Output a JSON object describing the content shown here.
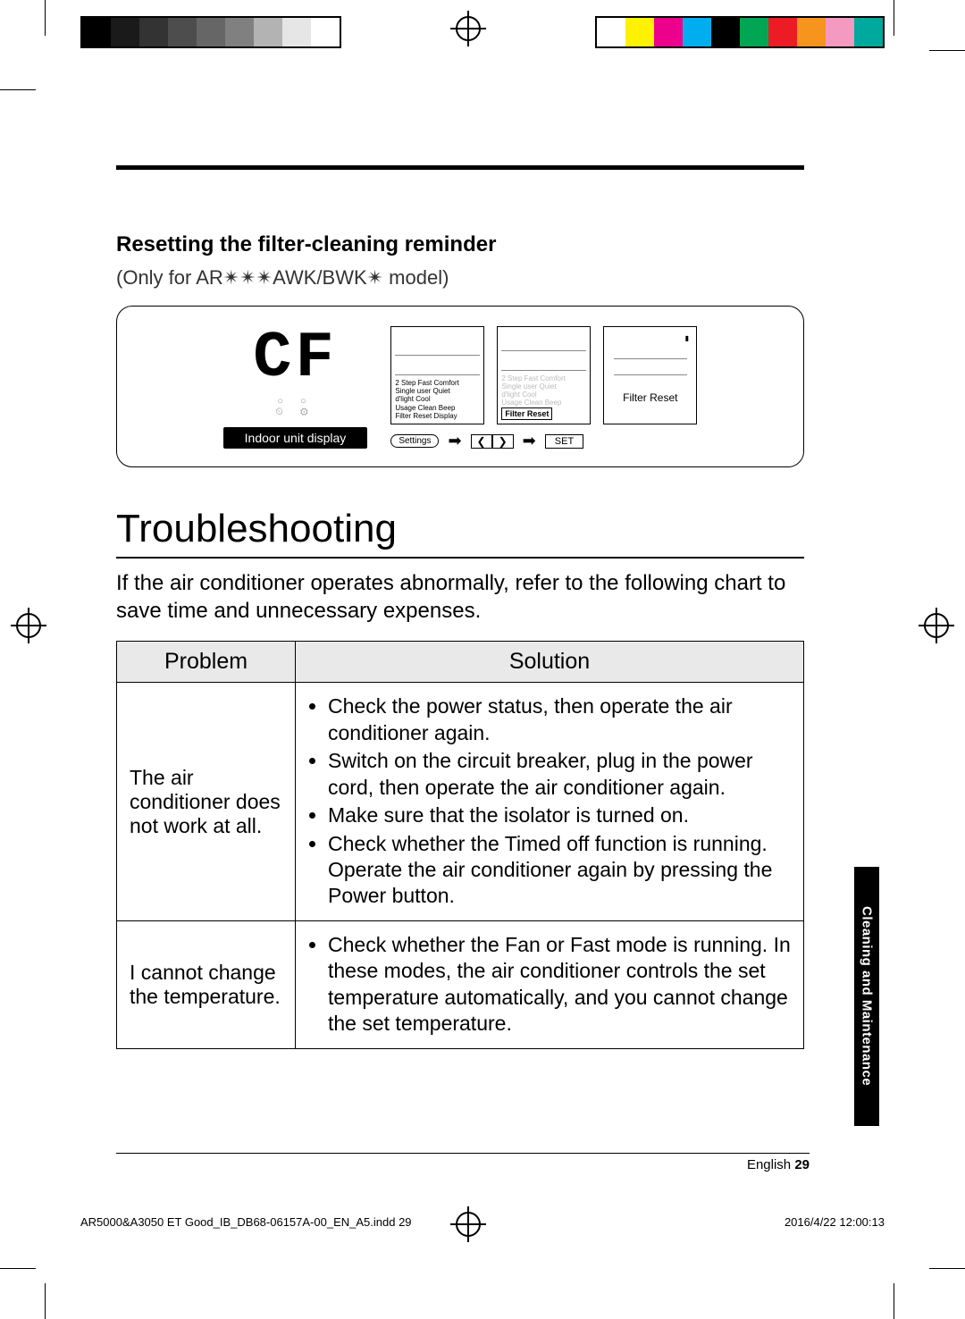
{
  "swatches_left": [
    "#000000",
    "#1a1a1a",
    "#333333",
    "#4d4d4d",
    "#666666",
    "#808080",
    "#b3b3b3",
    "#e6e6e6",
    "#ffffff"
  ],
  "swatches_right": [
    "#ffffff",
    "#fff200",
    "#ec008c",
    "#00aeef",
    "#000000",
    "#00a651",
    "#ed1c24",
    "#f7941d",
    "#f49ac1",
    "#00a99d"
  ],
  "section": {
    "subheading": "Resetting the filter-cleaning reminder",
    "model_note": "(Only for AR✴✴✴AWK/BWK✴ model)"
  },
  "diagram": {
    "seven_seg": "CF",
    "indoor_label": "Indoor unit display",
    "panel_lines": [
      "2 Step  Fast  Comfort",
      "Single user  Quiet",
      "d'light Cool",
      "Usage   Clean   Beep",
      "Filter Reset    Display"
    ],
    "highlight_label": "Filter Reset",
    "big_label": "Filter Reset",
    "settings_label": "Settings",
    "nav_left": "❮",
    "nav_right": "❯",
    "set_label": "SET",
    "arrow_glyph": "➡"
  },
  "troubleshooting": {
    "heading": "Troubleshooting",
    "intro": "If the air conditioner operates abnormally, refer to the following chart to save time and unnecessary expenses.",
    "columns": [
      "Problem",
      "Solution"
    ],
    "rows": [
      {
        "problem": "The air conditioner does not work at all.",
        "solutions": [
          "Check the power status, then operate the air conditioner again.",
          "Switch on the circuit breaker, plug in the power cord, then operate the air conditioner again.",
          "Make sure that the isolator is turned on.",
          "Check whether the Timed off function is running. Operate the air conditioner again by pressing the Power button."
        ]
      },
      {
        "problem": "I cannot change the temperature.",
        "solutions": [
          "Check whether the Fan or Fast mode is running. In these modes, the air conditioner controls the set temperature automatically, and you cannot change the set temperature."
        ]
      }
    ]
  },
  "side_tab": "Cleaning and Maintenance",
  "footer": {
    "lang": "English",
    "page": "29"
  },
  "print_footer": {
    "left": "AR5000&A3050 ET Good_IB_DB68-06157A-00_EN_A5.indd   29",
    "right": "2016/4/22   12:00:13"
  }
}
